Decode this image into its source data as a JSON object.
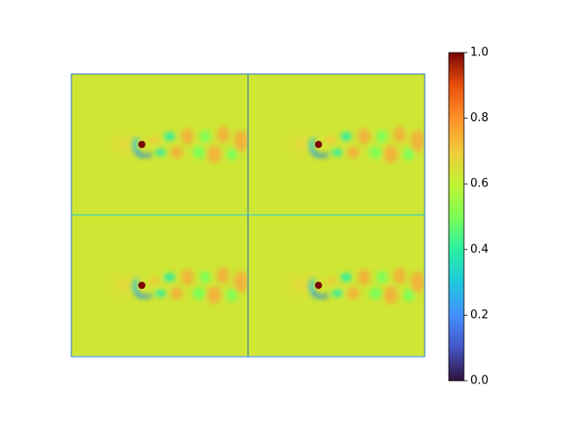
{
  "chart_data": {
    "type": "image",
    "colorbar": {
      "clim": [
        0,
        1
      ],
      "ticks": [
        {
          "value": 0,
          "label": "0.0"
        },
        {
          "value": 0.2,
          "label": "0.2"
        },
        {
          "value": 0.4,
          "label": "0.4"
        },
        {
          "value": 0.6,
          "label": "0.6"
        },
        {
          "value": 0.8,
          "label": "0.8"
        },
        {
          "value": 1,
          "label": "1.0"
        }
      ]
    }
  }
}
